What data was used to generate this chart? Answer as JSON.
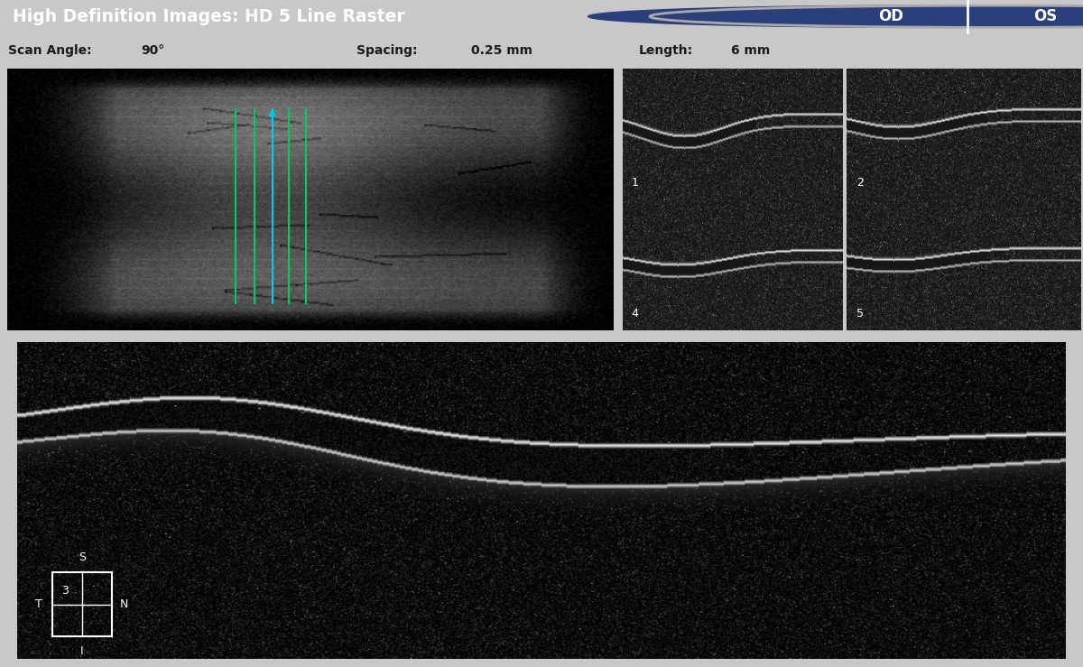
{
  "header_text": "High Definition Images: HD 5 Line Raster",
  "scan_angle_label": "Scan Angle:",
  "scan_angle_value": "90°",
  "spacing_label": "Spacing:",
  "spacing_value": "0.25 mm",
  "length_label": "Length:",
  "length_value": "6 mm",
  "od_text": "OD",
  "os_text": "OS",
  "header_bg": "#1c1c1c",
  "header_fg": "#ffffff",
  "info_bg": "#e8e8e8",
  "info_fg": "#1a1a1a",
  "outer_bg": "#c8c8c8",
  "cyan_border": "#40c8d8",
  "green_line_color": "#00cc66",
  "cyan_line_color": "#00ccee",
  "od_circle_color": "#2b3f7a",
  "thumbnail_labels": [
    "1",
    "2",
    "4",
    "5"
  ],
  "compass_number": "3",
  "compass_labels": [
    "S",
    "N",
    "T",
    "I"
  ]
}
